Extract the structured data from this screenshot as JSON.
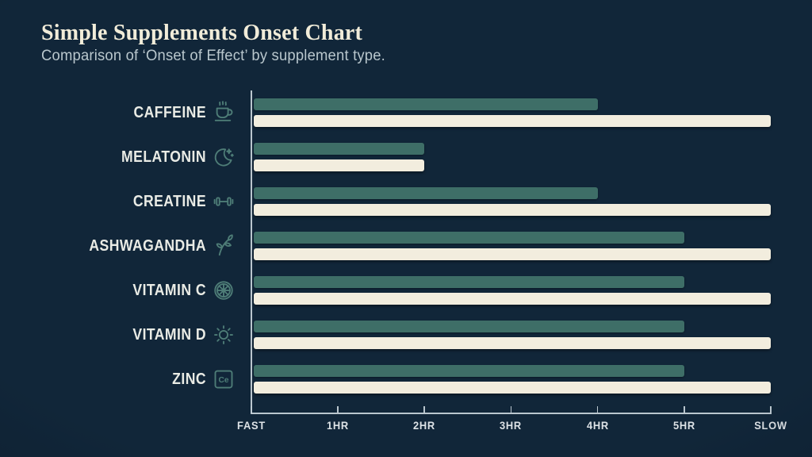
{
  "header": {
    "title": "Simple Supplements Onset Chart",
    "subtitle": "Comparison of ‘Onset of Effect’ by supplement type."
  },
  "colors": {
    "background": "#112639",
    "bar_teal": "#3e6e67",
    "bar_cream": "#f2edde",
    "axis": "#c9d4db",
    "row_label_text": "#e9ebe5",
    "icon_stroke": "#4e7d77",
    "title_text": "#f1ecd9",
    "subtitle_text": "#b9c7cd"
  },
  "chart_data": {
    "type": "bar",
    "orientation": "horizontal",
    "title": "Simple Supplements Onset Chart",
    "subtitle": "Comparison of ‘Onset of Effect’ by supplement type.",
    "categories": [
      "CAFFEINE",
      "MELATONIN",
      "CREATINE",
      "ASHWAGANDHA",
      "VITAMIN C",
      "VITAMIN D",
      "ZINC"
    ],
    "category_icons": [
      "coffee-cup-icon",
      "crescent-moon-icon",
      "dumbbell-icon",
      "leaf-branch-icon",
      "citrus-slice-icon",
      "sun-icon",
      "element-tile-icon"
    ],
    "element_tile_text": "Ce",
    "series": [
      {
        "name": "teal-bar",
        "color": "#3e6e67",
        "values_hours": [
          4,
          2,
          4,
          5,
          5,
          5,
          5
        ]
      },
      {
        "name": "cream-bar",
        "color": "#f2edde",
        "values_hours": [
          6,
          2,
          6,
          6,
          6,
          6,
          6
        ]
      }
    ],
    "x_axis": {
      "min": 0,
      "max": 6,
      "unit": "hours",
      "tick_labels": [
        "FAST",
        "1HR",
        "2HR",
        "3HR",
        "4HR",
        "5HR",
        "SLOW"
      ],
      "grid": false
    },
    "legend": "none"
  }
}
